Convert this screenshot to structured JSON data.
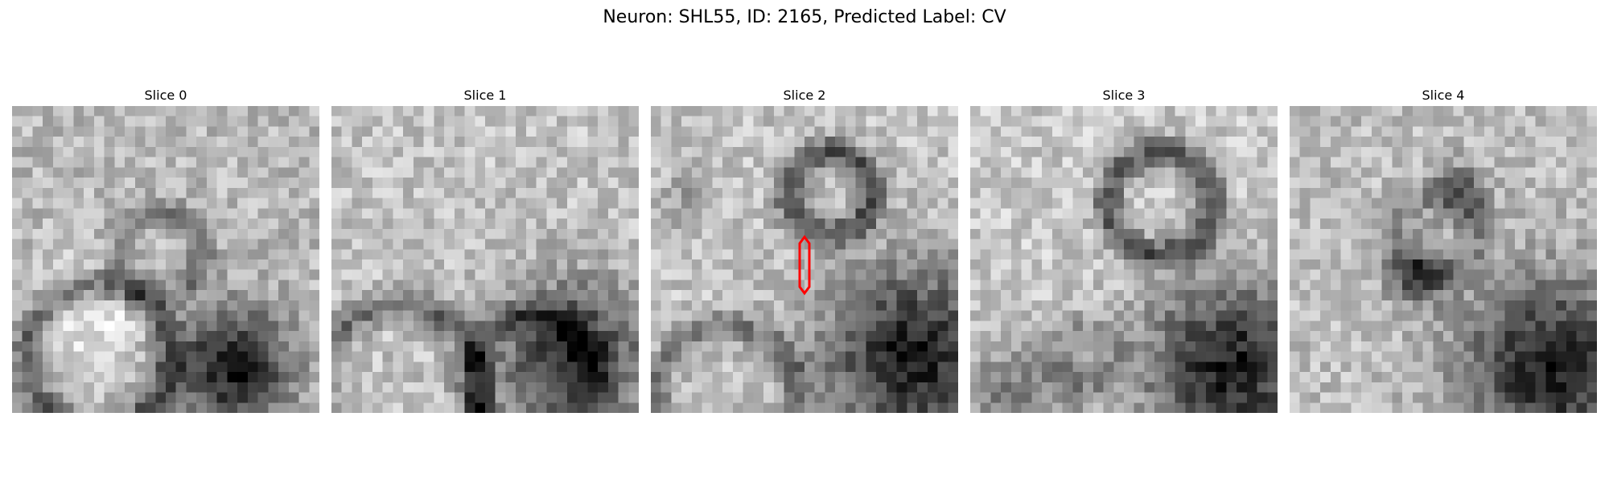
{
  "figure": {
    "title": "Neuron: SHL55, ID: 2165, Predicted Label: CV"
  },
  "panels": [
    {
      "title": "Slice 0"
    },
    {
      "title": "Slice 1"
    },
    {
      "title": "Slice 2",
      "marker": true
    },
    {
      "title": "Slice 3"
    },
    {
      "title": "Slice 4"
    }
  ],
  "style": {
    "marker_color": "#ff0000",
    "colormap": "gray"
  }
}
